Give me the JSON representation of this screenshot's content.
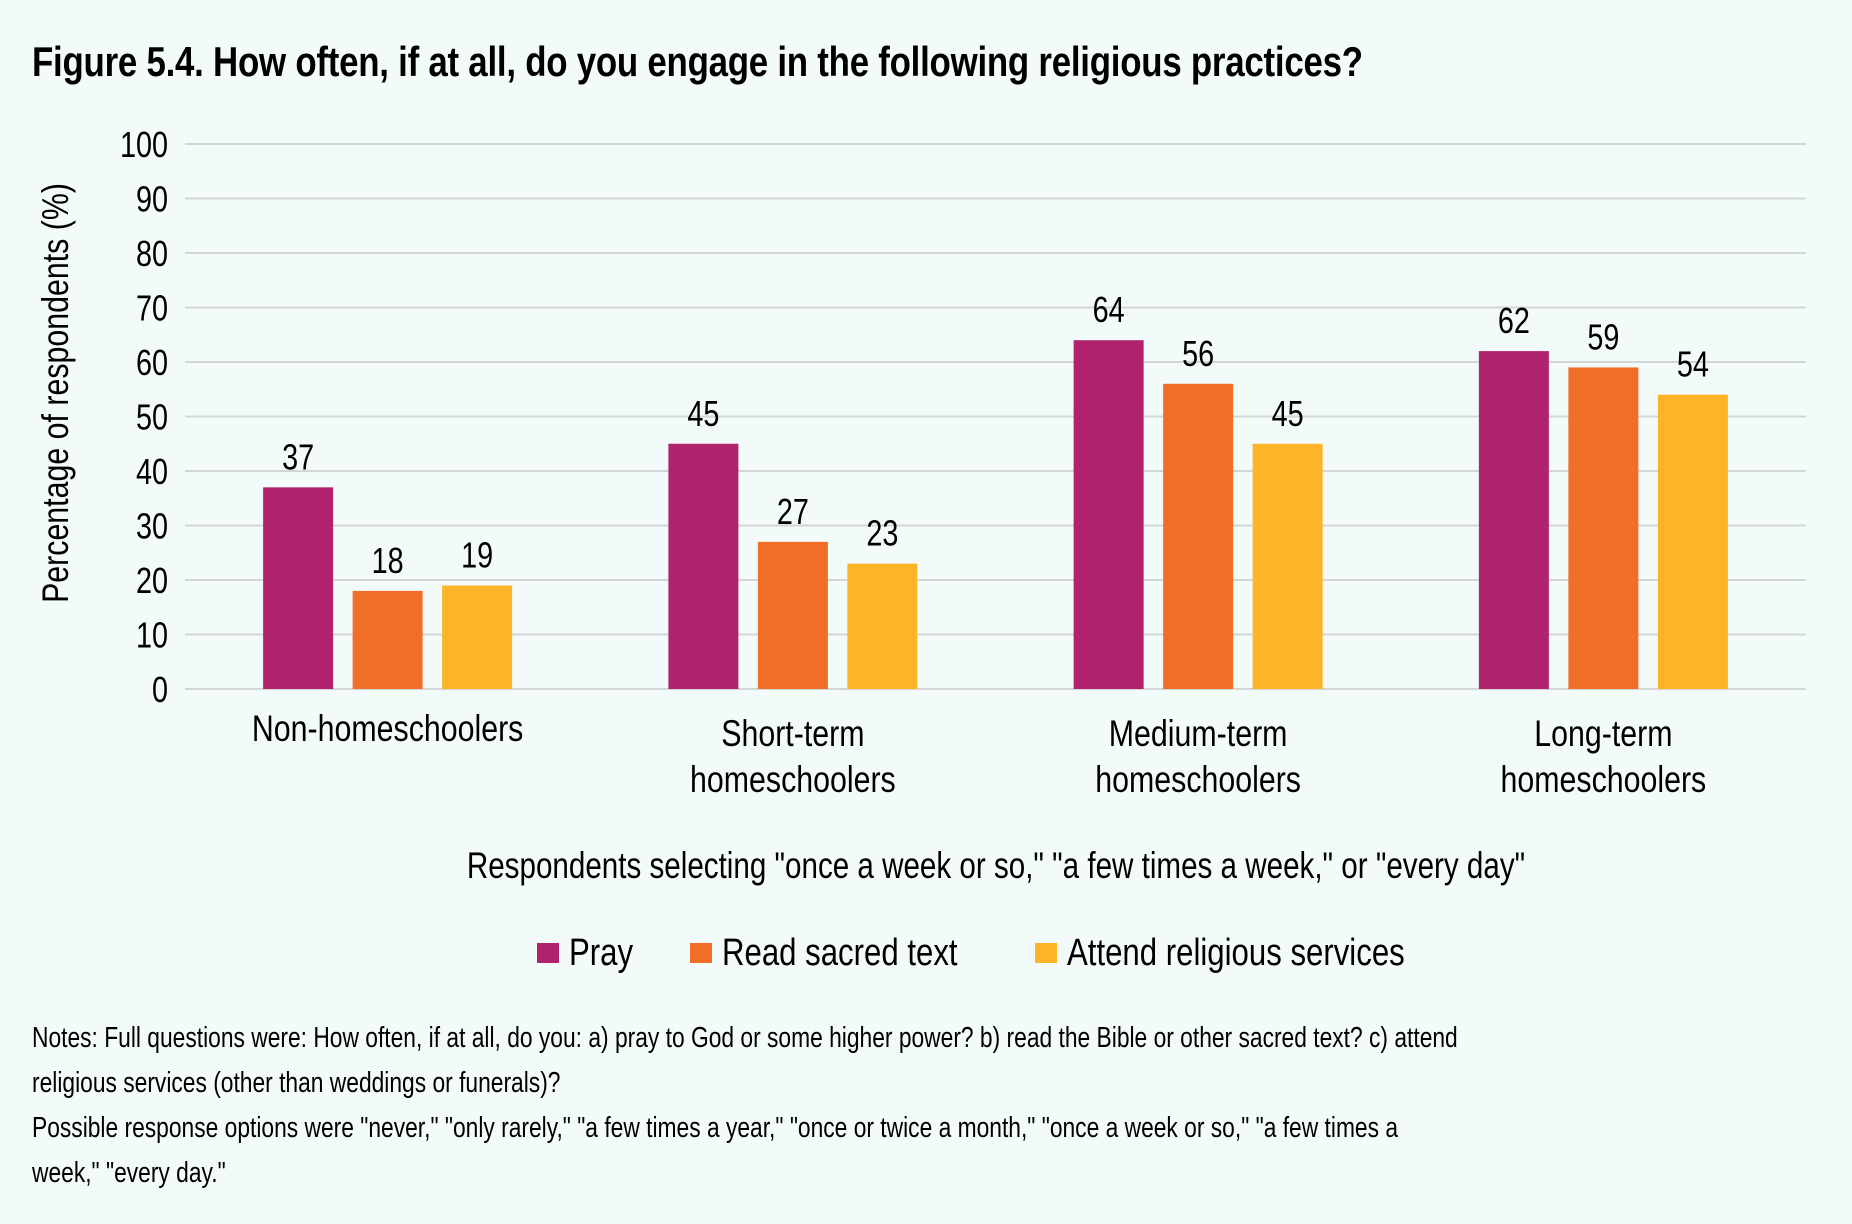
{
  "title": "Figure 5.4. How often, if at all, do you engage in the following religious practices?",
  "chart_data": {
    "type": "bar",
    "title": "Figure 5.4. How often, if at all, do you engage in the following religious practices?",
    "xlabel": "Respondents selecting \"once a week or so,\" \"a few times a week,\" or \"every day\"",
    "ylabel": "Percentage of respondents (%)",
    "ylim": [
      0,
      100
    ],
    "yticks": [
      0,
      10,
      20,
      30,
      40,
      50,
      60,
      70,
      80,
      90,
      100
    ],
    "grid": true,
    "legend_position": "bottom-center",
    "categories": [
      [
        "Non-homeschoolers"
      ],
      [
        "Short-term",
        "homeschoolers"
      ],
      [
        "Medium-term",
        "homeschoolers"
      ],
      [
        "Long-term",
        "homeschoolers"
      ]
    ],
    "series": [
      {
        "name": "Pray",
        "color": "#b0226e",
        "values": [
          37,
          45,
          64,
          62
        ]
      },
      {
        "name": "Read sacred text",
        "color": "#f06e27",
        "values": [
          18,
          27,
          56,
          59
        ]
      },
      {
        "name": "Attend religious services",
        "color": "#fdb428",
        "values": [
          19,
          23,
          45,
          54
        ]
      }
    ]
  },
  "notes": [
    "Notes: Full questions were: How often, if at all, do you: a) pray to God or some higher power? b) read the Bible or other sacred text? c) attend",
    "religious services (other than weddings or funerals)?",
    "Possible response options were \"never,\" \"only rarely,\" \"a few times a year,\" \"once or twice a month,\" \"once a week or so,\" \"a few times a",
    "week,\" \"every day.\""
  ]
}
